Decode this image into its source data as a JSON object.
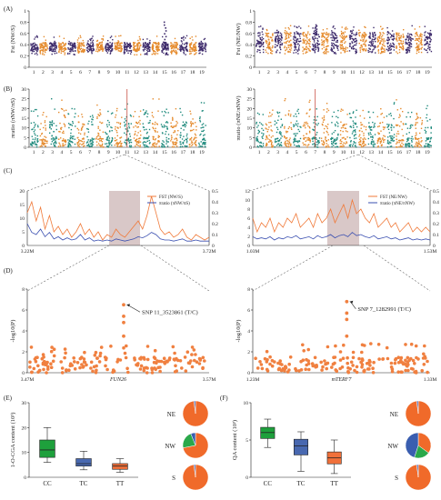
{
  "colors": {
    "purple": "#3d2a6b",
    "orange": "#e58a2c",
    "teal": "#1f8a7d",
    "manhattan_orange": "#f08040",
    "fst_line": "#f07a3a",
    "ratio_line": "#3a4fb0",
    "shade": "#d9c8c8",
    "box_green": "#1ea03c",
    "box_blue": "#4868b0",
    "box_orange": "#f0703a",
    "pie_orange": "#f06a2a",
    "pie_green": "#2aa84a",
    "pie_blue": "#3a5eb0"
  },
  "panels": {
    "A": "(A)",
    "B": "(B)",
    "C": "(C)",
    "D": "(D)",
    "E": "(E)",
    "F": "(F)"
  },
  "chromosomes": [
    "1",
    "2",
    "3",
    "4",
    "5",
    "6",
    "7",
    "8",
    "9",
    "10",
    "11",
    "12",
    "13",
    "14",
    "15",
    "16",
    "17",
    "18",
    "19"
  ],
  "chart_data": [
    {
      "id": "A-left",
      "type": "scatter",
      "ylabel": "Fst (NW/S)",
      "ylim": [
        0,
        1
      ],
      "yticks": [
        "0",
        "0.2",
        "0.4",
        "0.6",
        "0.8",
        "1"
      ],
      "chromosomes": 19,
      "baseline_band": [
        0.28,
        0.44
      ],
      "peak_chromosome": "15",
      "peak_value": 0.8
    },
    {
      "id": "A-right",
      "type": "scatter",
      "ylabel": "Fst (NE/NW)",
      "ylim": [
        0,
        1
      ],
      "yticks": [
        "0",
        "0.2",
        "0.4",
        "0.6",
        "0.8",
        "1"
      ],
      "chromosomes": 19,
      "baseline_band": [
        0.3,
        0.62
      ],
      "peak_chromosome": "7",
      "peak_value": 0.75
    },
    {
      "id": "B-left",
      "type": "scatter",
      "ylabel": "πratio (πNW/πS)",
      "ylim": [
        0,
        30
      ],
      "yticks": [
        "0",
        "5",
        "10",
        "15",
        "20",
        "25",
        "30"
      ],
      "chromosomes": 19,
      "marked_chromosome": "11"
    },
    {
      "id": "B-right",
      "type": "scatter",
      "ylabel": "πratio (πNE/πNW)",
      "ylim": [
        0,
        30
      ],
      "yticks": [
        "0",
        "5",
        "10",
        "15",
        "20",
        "25",
        "30"
      ],
      "chromosomes": 19,
      "marked_chromosome": "7"
    },
    {
      "id": "C-left",
      "type": "line",
      "xrange_labels": [
        "3.22M",
        "3.72M"
      ],
      "ylim_left": [
        0,
        20
      ],
      "yticks_left": [
        "0",
        "5",
        "10",
        "15",
        "20"
      ],
      "ylim_right": [
        0,
        0.5
      ],
      "yticks_right": [
        "0",
        "0.1",
        "0.2",
        "0.3",
        "0.4",
        "0.5"
      ],
      "series": [
        {
          "name": "FST (NW/S)",
          "values": [
            12,
            16,
            9,
            14,
            6,
            11,
            5,
            7,
            4,
            6,
            3,
            5,
            8,
            4,
            6,
            3,
            5,
            2,
            4,
            3,
            6,
            4,
            3,
            5,
            7,
            9,
            6,
            11,
            18,
            12,
            6,
            4,
            5,
            3,
            4,
            6,
            3,
            2,
            4,
            3,
            2,
            3
          ]
        },
        {
          "name": "πratio (πNW/πS)",
          "values": [
            0.2,
            0.12,
            0.1,
            0.15,
            0.08,
            0.12,
            0.06,
            0.08,
            0.05,
            0.07,
            0.05,
            0.06,
            0.1,
            0.05,
            0.07,
            0.04,
            0.05,
            0.04,
            0.05,
            0.04,
            0.06,
            0.05,
            0.04,
            0.05,
            0.06,
            0.08,
            0.07,
            0.09,
            0.12,
            0.1,
            0.06,
            0.05,
            0.05,
            0.04,
            0.05,
            0.06,
            0.04,
            0.04,
            0.05,
            0.04,
            0.04,
            0.04
          ]
        }
      ]
    },
    {
      "id": "C-right",
      "type": "line",
      "xrange_labels": [
        "1.03M",
        "1.53M"
      ],
      "ylim_left": [
        0,
        12
      ],
      "yticks_left": [
        "0",
        "2",
        "4",
        "6",
        "8",
        "10",
        "12"
      ],
      "ylim_right": [
        0,
        0.5
      ],
      "yticks_right": [
        "0",
        "0.1",
        "0.2",
        "0.3",
        "0.4",
        "0.5"
      ],
      "series": [
        {
          "name": "FST (NE/NW)",
          "values": [
            6,
            3,
            5,
            4,
            6,
            3,
            5,
            4,
            6,
            5,
            7,
            4,
            5,
            6,
            4,
            7,
            5,
            6,
            8,
            5,
            7,
            9,
            6,
            10,
            7,
            8,
            6,
            5,
            7,
            4,
            5,
            6,
            4,
            5,
            3,
            4,
            5,
            3,
            4,
            3,
            4,
            3
          ]
        },
        {
          "name": "πratio (πNE/πNW)",
          "values": [
            0.08,
            0.06,
            0.07,
            0.06,
            0.08,
            0.05,
            0.07,
            0.06,
            0.08,
            0.07,
            0.09,
            0.06,
            0.07,
            0.08,
            0.06,
            0.09,
            0.07,
            0.08,
            0.1,
            0.07,
            0.09,
            0.1,
            0.08,
            0.12,
            0.09,
            0.1,
            0.08,
            0.07,
            0.09,
            0.06,
            0.07,
            0.08,
            0.06,
            0.07,
            0.05,
            0.06,
            0.07,
            0.05,
            0.06,
            0.05,
            0.06,
            0.05
          ]
        }
      ]
    },
    {
      "id": "D-left",
      "type": "scatter",
      "ylabel": "-log10(P)",
      "ylim": [
        0,
        8
      ],
      "yticks": [
        "0",
        "2",
        "4",
        "6",
        "8"
      ],
      "xrange_labels": [
        "3.47M",
        "3.57M"
      ],
      "gene": "FUN26",
      "annotation": "SNP 11_3523861 (T/C)",
      "top_snp_value": 6.5
    },
    {
      "id": "D-right",
      "type": "scatter",
      "ylabel": "-log10(P)",
      "ylim": [
        0,
        8
      ],
      "yticks": [
        "0",
        "2",
        "4",
        "6",
        "8"
      ],
      "xrange_labels": [
        "1.23M",
        "1.33M"
      ],
      "gene": "mTERF7",
      "annotation": "SNP 7_1282991 (T/C)",
      "top_snp_value": 6.8
    },
    {
      "id": "E-box",
      "type": "box",
      "ylabel": "1-O-CGA content (10³)",
      "ylim": [
        0,
        30
      ],
      "yticks": [
        "0",
        "10",
        "20",
        "30"
      ],
      "categories": [
        "CC",
        "TC",
        "TT"
      ],
      "boxes": [
        {
          "min": 6,
          "q1": 8,
          "median": 11,
          "q3": 15,
          "max": 20
        },
        {
          "min": 3,
          "q1": 4.5,
          "median": 5.5,
          "q3": 7.5,
          "max": 10.5
        },
        {
          "min": 2,
          "q1": 3.2,
          "median": 4.5,
          "q3": 5.5,
          "max": 7.5
        }
      ]
    },
    {
      "id": "F-box",
      "type": "box",
      "ylabel": "QA content (10³)",
      "ylim": [
        0,
        10
      ],
      "yticks": [
        "0",
        "5",
        "10"
      ],
      "categories": [
        "CC",
        "TC",
        "TT"
      ],
      "boxes": [
        {
          "min": 4,
          "q1": 5.2,
          "median": 6,
          "q3": 6.7,
          "max": 7.8
        },
        {
          "min": 0.8,
          "q1": 3,
          "median": 4.2,
          "q3": 5.1,
          "max": 6.1
        },
        {
          "min": 0.5,
          "q1": 1.8,
          "median": 2.6,
          "q3": 3.4,
          "max": 5
        }
      ]
    },
    {
      "id": "E-pies",
      "type": "pie",
      "pies": [
        {
          "label": "NE",
          "slices": [
            0.98,
            0.0,
            0.02
          ]
        },
        {
          "label": "NW",
          "slices": [
            0.72,
            0.22,
            0.06
          ]
        },
        {
          "label": "S",
          "slices": [
            0.98,
            0.0,
            0.02
          ]
        }
      ]
    },
    {
      "id": "F-pies",
      "type": "pie",
      "pies": [
        {
          "label": "NE",
          "slices": [
            0.98,
            0.0,
            0.02
          ]
        },
        {
          "label": "NW",
          "slices": [
            0.35,
            0.2,
            0.45
          ]
        },
        {
          "label": "S",
          "slices": [
            0.98,
            0.0,
            0.02
          ]
        }
      ]
    }
  ]
}
